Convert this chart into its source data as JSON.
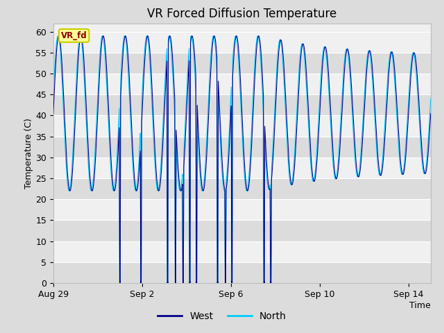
{
  "title": "VR Forced Diffusion Temperature",
  "xlabel": "Time",
  "ylabel": "Temperature (C)",
  "ylim": [
    0,
    62
  ],
  "yticks": [
    0,
    5,
    10,
    15,
    20,
    25,
    30,
    35,
    40,
    45,
    50,
    55,
    60
  ],
  "xtick_labels": [
    "Aug 29",
    "Sep 2",
    "Sep 6",
    "Sep 10",
    "Sep 14"
  ],
  "xtick_positions": [
    0,
    4,
    8,
    12,
    16
  ],
  "west_color": "#00008B",
  "north_color": "#00CCFF",
  "fig_bg_color": "#DCDCDC",
  "plot_bg_light": "#F0F0F0",
  "plot_bg_dark": "#DCDCDC",
  "label_box_facecolor": "#FFFF99",
  "label_box_edgecolor": "#CCCC00",
  "label_text": "VR_fd",
  "label_text_color": "#8B0000",
  "legend_west": "West",
  "legend_north": "North",
  "title_fontsize": 12,
  "axis_label_fontsize": 9,
  "tick_fontsize": 9,
  "n_days": 17
}
